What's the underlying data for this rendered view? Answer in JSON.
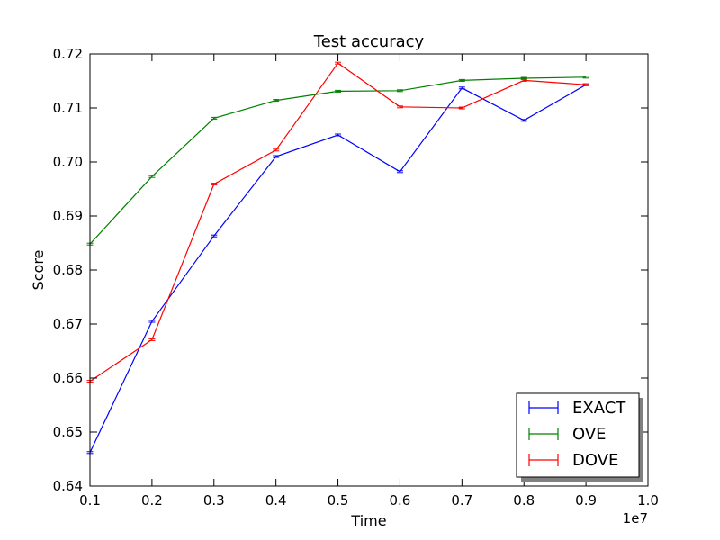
{
  "chart_data": {
    "type": "line",
    "title": "Test accuracy",
    "xlabel": "Time",
    "ylabel": "Score",
    "x_offset_label": "1e7",
    "xlim": [
      0.1,
      1.0
    ],
    "ylim": [
      0.64,
      0.72
    ],
    "x_ticks": [
      "0.1",
      "0.2",
      "0.3",
      "0.4",
      "0.5",
      "0.6",
      "0.7",
      "0.8",
      "0.9",
      "1.0"
    ],
    "y_ticks": [
      "0.64",
      "0.65",
      "0.66",
      "0.67",
      "0.68",
      "0.69",
      "0.70",
      "0.71",
      "0.72"
    ],
    "x": [
      0.1,
      0.2,
      0.3,
      0.4,
      0.5,
      0.6,
      0.7,
      0.8,
      0.9
    ],
    "grid": false,
    "legend_position": "lower-right",
    "series": [
      {
        "name": "EXACT",
        "color": "#0000ff",
        "values": [
          0.6462,
          0.6705,
          0.6863,
          0.701,
          0.705,
          0.6982,
          0.7137,
          0.7077,
          0.7143
        ]
      },
      {
        "name": "OVE",
        "color": "#008000",
        "values": [
          0.6848,
          0.6973,
          0.7081,
          0.7114,
          0.7131,
          0.7132,
          0.7151,
          0.7155,
          0.7157
        ]
      },
      {
        "name": "DOVE",
        "color": "#ff0000",
        "values": [
          0.6594,
          0.6671,
          0.6959,
          0.7022,
          0.7183,
          0.7102,
          0.71,
          0.7151,
          0.7143
        ]
      }
    ]
  }
}
